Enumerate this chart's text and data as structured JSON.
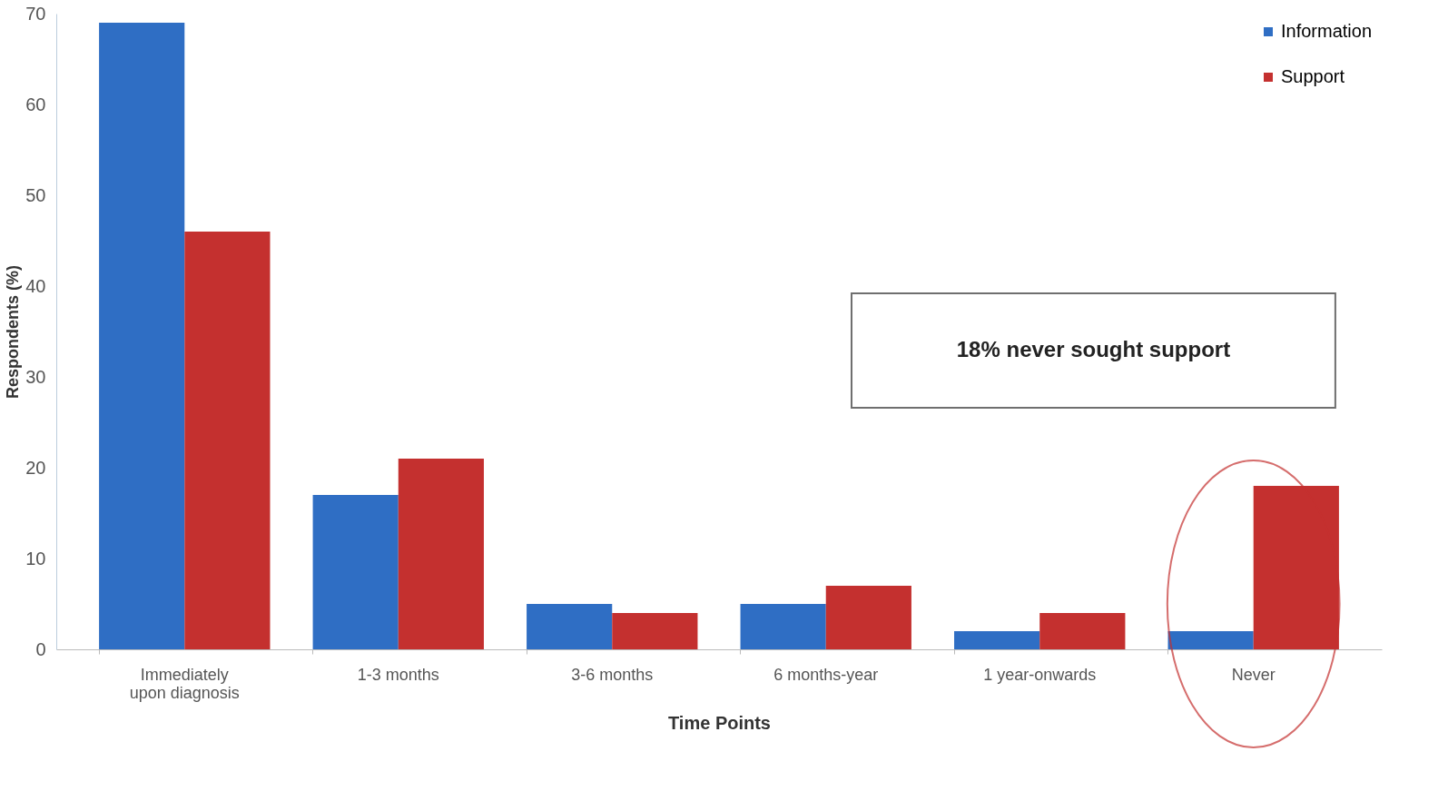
{
  "chart_data": {
    "type": "bar",
    "xlabel": "Time Points",
    "ylabel": "Respondents (%)",
    "categories": [
      "Immediately upon diagnosis",
      "1-3 months",
      "3-6 months",
      "6 months-year",
      "1 year-onwards",
      "Never"
    ],
    "series": [
      {
        "name": "Information",
        "color": "#2f6ec4",
        "values": [
          69,
          17,
          5,
          5,
          2,
          2
        ]
      },
      {
        "name": "Support",
        "color": "#c4302f",
        "values": [
          46,
          21,
          4,
          7,
          4,
          18
        ]
      }
    ],
    "ylim": [
      0,
      70
    ],
    "yticks": [
      0,
      10,
      20,
      30,
      40,
      50,
      60,
      70
    ],
    "grid": false,
    "legend": "top right",
    "annotations": [
      "18% never sought support"
    ]
  }
}
